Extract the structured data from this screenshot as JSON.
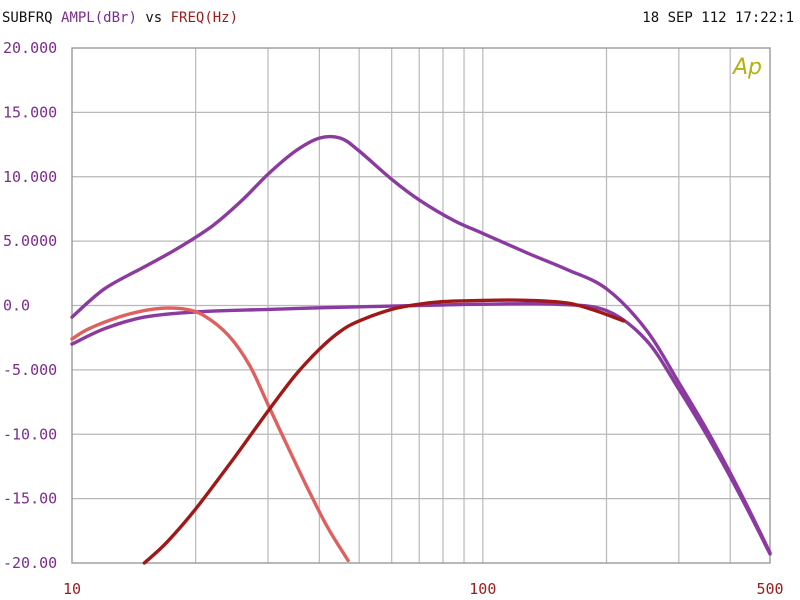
{
  "header": {
    "prefix": "SUBFRQ",
    "yname": "AMPL(dBr)",
    "vs": "vs",
    "xname": "FREQ(Hz)",
    "timestamp": "18 SEP 112 17:22:1"
  },
  "logo_text": "Ap",
  "colors": {
    "header_prefix": "#111111",
    "yname": "#7b2d8e",
    "xname": "#9b1c1c",
    "grid": "#b8b8b8",
    "ytick": "#7b2d8e",
    "xtick": "#9b1c1c",
    "logo": "#b8b010"
  },
  "chart_data": {
    "type": "line",
    "xscale": "log",
    "xlim": [
      10,
      500
    ],
    "ylim": [
      -20,
      20
    ],
    "grid": true,
    "xticks": [
      10,
      100,
      500
    ],
    "xtick_labels": [
      "10",
      "100",
      "500"
    ],
    "yticks": [
      20,
      15,
      10,
      5,
      0,
      -5,
      -10,
      -15,
      -20
    ],
    "ytick_labels": [
      "20.000",
      "15.000",
      "10.000",
      "5.0000",
      "0.0",
      "-5.000",
      "-10.00",
      "-15.00",
      "-20.00"
    ],
    "series": [
      {
        "color": "#8b3aa0",
        "points": [
          [
            10,
            -0.9
          ],
          [
            12,
            1.3
          ],
          [
            15,
            3.0
          ],
          [
            18,
            4.4
          ],
          [
            22,
            6.2
          ],
          [
            26,
            8.2
          ],
          [
            30,
            10.2
          ],
          [
            35,
            12.0
          ],
          [
            40,
            13.0
          ],
          [
            45,
            13.0
          ],
          [
            50,
            12.0
          ],
          [
            60,
            9.8
          ],
          [
            70,
            8.2
          ],
          [
            85,
            6.6
          ],
          [
            100,
            5.6
          ],
          [
            130,
            4.0
          ],
          [
            160,
            2.8
          ],
          [
            200,
            1.3
          ],
          [
            250,
            -1.9
          ],
          [
            300,
            -6.0
          ],
          [
            350,
            -9.6
          ],
          [
            400,
            -13.0
          ],
          [
            450,
            -16.2
          ],
          [
            500,
            -19.2
          ]
        ]
      },
      {
        "color": "#8b3aa0",
        "points": [
          [
            10,
            -3.0
          ],
          [
            12,
            -1.8
          ],
          [
            15,
            -0.9
          ],
          [
            20,
            -0.5
          ],
          [
            30,
            -0.3
          ],
          [
            50,
            -0.1
          ],
          [
            70,
            0.0
          ],
          [
            100,
            0.1
          ],
          [
            150,
            0.1
          ],
          [
            200,
            -0.4
          ],
          [
            250,
            -2.7
          ],
          [
            300,
            -6.5
          ],
          [
            350,
            -10.0
          ],
          [
            400,
            -13.3
          ],
          [
            450,
            -16.4
          ],
          [
            500,
            -19.3
          ]
        ]
      },
      {
        "color": "#e06060",
        "points": [
          [
            10,
            -2.6
          ],
          [
            11,
            -1.8
          ],
          [
            13,
            -0.9
          ],
          [
            15,
            -0.4
          ],
          [
            17,
            -0.2
          ],
          [
            19,
            -0.3
          ],
          [
            21,
            -0.8
          ],
          [
            24,
            -2.3
          ],
          [
            27,
            -4.6
          ],
          [
            30,
            -7.7
          ],
          [
            34,
            -11.4
          ],
          [
            38,
            -14.6
          ],
          [
            42,
            -17.3
          ],
          [
            47,
            -19.8
          ]
        ]
      },
      {
        "color": "#a01818",
        "points": [
          [
            15,
            -20.0
          ],
          [
            17,
            -18.4
          ],
          [
            20,
            -15.8
          ],
          [
            25,
            -11.7
          ],
          [
            30,
            -8.2
          ],
          [
            35,
            -5.4
          ],
          [
            40,
            -3.4
          ],
          [
            45,
            -2.0
          ],
          [
            50,
            -1.2
          ],
          [
            60,
            -0.3
          ],
          [
            70,
            0.1
          ],
          [
            80,
            0.3
          ],
          [
            100,
            0.4
          ],
          [
            130,
            0.4
          ],
          [
            160,
            0.2
          ],
          [
            180,
            -0.2
          ],
          [
            200,
            -0.7
          ],
          [
            220,
            -1.2
          ]
        ]
      }
    ]
  }
}
